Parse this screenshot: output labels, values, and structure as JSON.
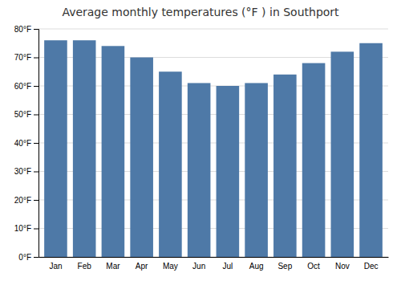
{
  "chart_data": {
    "type": "bar",
    "title": "Average monthly temperatures (°F ) in Southport",
    "categories": [
      "Jan",
      "Feb",
      "Mar",
      "Apr",
      "May",
      "Jun",
      "Jul",
      "Aug",
      "Sep",
      "Oct",
      "Nov",
      "Dec"
    ],
    "values": [
      76,
      76,
      74,
      70,
      65,
      61,
      60,
      61,
      64,
      68,
      72,
      75
    ],
    "ylim": [
      0,
      80
    ],
    "yticks": [
      {
        "value": 0,
        "label": "0°F"
      },
      {
        "value": 10,
        "label": "10°F"
      },
      {
        "value": 20,
        "label": "20°F"
      },
      {
        "value": 30,
        "label": "30°F"
      },
      {
        "value": 40,
        "label": "40°F"
      },
      {
        "value": 50,
        "label": "50°F"
      },
      {
        "value": 60,
        "label": "60°F"
      },
      {
        "value": 70,
        "label": "70°F"
      },
      {
        "value": 80,
        "label": "80°F"
      }
    ],
    "grid": true
  }
}
